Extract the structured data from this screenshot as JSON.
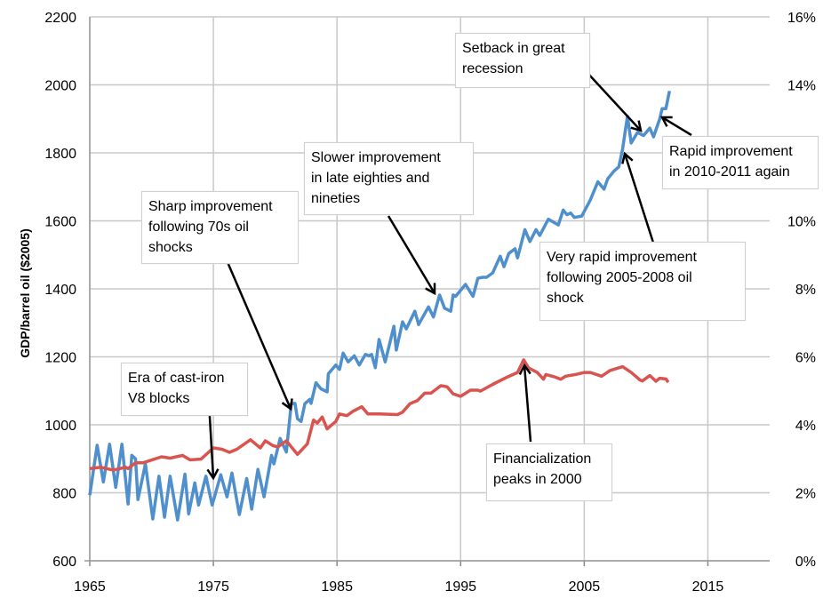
{
  "chart_data": {
    "type": "line",
    "title": "",
    "xlabel": "",
    "ylabel": "GDP/barrel oil ($2005)",
    "y2label": "",
    "xlim": [
      1965,
      2020
    ],
    "ylim": [
      600,
      2200
    ],
    "y2lim": [
      0,
      16
    ],
    "grid": true,
    "legend": "none",
    "x_ticks": [
      "1965",
      "1975",
      "1985",
      "1995",
      "2005",
      "2015"
    ],
    "y_ticks": [
      "600",
      "800",
      "1000",
      "1200",
      "1400",
      "1600",
      "1800",
      "2000",
      "2200"
    ],
    "y2_ticks": [
      "0%",
      "2%",
      "4%",
      "6%",
      "8%",
      "10%",
      "12%",
      "14%",
      "16%"
    ],
    "series": [
      {
        "axis": "left",
        "color": "#4f8fcc",
        "x": [
          1965.0,
          1965.6,
          1966.1,
          1966.6,
          1967.1,
          1967.6,
          1968.1,
          1968.4,
          1968.7,
          1968.9,
          1969.5,
          1970.1,
          1970.6,
          1971.05,
          1971.5,
          1972.1,
          1972.7,
          1973.0,
          1973.5,
          1973.8,
          1974.4,
          1974.9,
          1975.6,
          1976.1,
          1976.5,
          1977.1,
          1977.7,
          1978.1,
          1978.6,
          1979.1,
          1979.7,
          1979.9,
          1980.4,
          1980.9,
          1981.3,
          1981.6,
          1981.8,
          1982.1,
          1982.4,
          1982.8,
          1982.9,
          1983.3,
          1983.7,
          1984.2,
          1984.3,
          1984.9,
          1985.2,
          1985.5,
          1985.9,
          1986.4,
          1986.8,
          1987.3,
          1987.6,
          1987.8,
          1988.1,
          1988.4,
          1988.9,
          1989.6,
          1989.8,
          1990.3,
          1990.6,
          1991.3,
          1991.6,
          1992.4,
          1992.8,
          1993.3,
          1993.7,
          1994.2,
          1994.4,
          1994.6,
          1995.4,
          1996.0,
          1996.4,
          1996.8,
          1997.1,
          1997.6,
          1998.2,
          1998.5,
          1998.9,
          1999.4,
          1999.6,
          2000.2,
          2000.6,
          2001.1,
          2001.4,
          2002.1,
          2002.9,
          2003.3,
          2003.6,
          2003.9,
          2004.2,
          2004.8,
          2005.5,
          2006.1,
          2006.6,
          2006.9,
          2007.4,
          2007.8,
          2008.1,
          2008.5,
          2008.8,
          2009.3,
          2009.8,
          2010.3,
          2010.6,
          2011.1,
          2011.3,
          2011.6,
          2011.9
        ],
        "values": [
          793,
          940,
          832,
          943,
          816,
          943,
          767,
          910,
          900,
          780,
          885,
          723,
          849,
          728,
          849,
          720,
          855,
          738,
          829,
          764,
          849,
          764,
          853,
          788,
          858,
          736,
          842,
          752,
          869,
          788,
          910,
          885,
          960,
          920,
          1062,
          1063,
          1018,
          1010,
          1062,
          1075,
          1063,
          1124,
          1106,
          1097,
          1150,
          1176,
          1163,
          1211,
          1185,
          1203,
          1176,
          1207,
          1203,
          1207,
          1168,
          1251,
          1185,
          1290,
          1220,
          1303,
          1282,
          1334,
          1295,
          1347,
          1317,
          1382,
          1343,
          1334,
          1382,
          1378,
          1413,
          1378,
          1431,
          1434,
          1434,
          1447,
          1496,
          1465,
          1504,
          1518,
          1491,
          1574,
          1539,
          1574,
          1557,
          1605,
          1588,
          1632,
          1618,
          1623,
          1610,
          1614,
          1662,
          1715,
          1693,
          1724,
          1746,
          1759,
          1811,
          1908,
          1829,
          1860,
          1851,
          1873,
          1847,
          1899,
          1930,
          1930,
          1982
        ]
      },
      {
        "axis": "right",
        "color": "#d9534f",
        "x": [
          1965.0,
          1965.9,
          1966.9,
          1967.9,
          1968.1,
          1968.7,
          1969.3,
          1970.8,
          1971.5,
          1972.5,
          1973.1,
          1974.0,
          1975.0,
          1975.7,
          1976.3,
          1976.9,
          1978.0,
          1978.8,
          1979.2,
          1979.8,
          1980.2,
          1980.9,
          1981.8,
          1982.6,
          1983.1,
          1983.4,
          1983.8,
          1984.2,
          1984.9,
          1985.2,
          1985.8,
          1986.3,
          1987.0,
          1987.5,
          1988.4,
          1989.9,
          1990.3,
          1990.9,
          1991.5,
          1992.1,
          1992.6,
          1993.4,
          1993.9,
          1994.4,
          1995.0,
          1995.8,
          1996.4,
          1996.6,
          1997.6,
          1998.8,
          1999.6,
          2000.1,
          2000.5,
          2001.2,
          2001.7,
          2001.9,
          2002.6,
          2003.1,
          2003.5,
          2004.3,
          2005.0,
          2005.5,
          2006.4,
          2007.1,
          2008.1,
          2008.8,
          2009.5,
          2009.7,
          2010.3,
          2010.8,
          2011.1,
          2011.6,
          2011.8
        ],
        "values": [
          2.71,
          2.75,
          2.67,
          2.75,
          2.71,
          2.88,
          2.88,
          3.06,
          3.02,
          3.1,
          2.97,
          2.99,
          3.32,
          3.28,
          3.19,
          3.28,
          3.56,
          3.32,
          3.53,
          3.39,
          3.35,
          3.53,
          3.13,
          3.44,
          4.14,
          4.05,
          4.23,
          3.88,
          4.1,
          4.32,
          4.27,
          4.4,
          4.53,
          4.32,
          4.32,
          4.3,
          4.37,
          4.62,
          4.71,
          4.93,
          4.93,
          5.15,
          5.12,
          4.91,
          4.84,
          5.02,
          5.02,
          4.99,
          5.19,
          5.41,
          5.54,
          5.91,
          5.67,
          5.54,
          5.34,
          5.48,
          5.41,
          5.34,
          5.43,
          5.48,
          5.54,
          5.54,
          5.43,
          5.6,
          5.71,
          5.54,
          5.32,
          5.29,
          5.45,
          5.28,
          5.37,
          5.35,
          5.25
        ]
      }
    ],
    "annotations": [
      {
        "lines": [
          "Era of cast-iron",
          "V8 blocks"
        ]
      },
      {
        "lines": [
          "Sharp improvement",
          "following 70s oil",
          "shocks"
        ]
      },
      {
        "lines": [
          "Slower improvement",
          "in late eighties and",
          "nineties"
        ]
      },
      {
        "lines": [
          "Setback in great",
          "recession"
        ]
      },
      {
        "lines": [
          "Rapid improvement",
          "in 2010-2011 again"
        ]
      },
      {
        "lines": [
          "Very rapid improvement",
          "following 2005-2008 oil",
          "shock"
        ]
      },
      {
        "lines": [
          "Financialization",
          "peaks in 2000"
        ]
      }
    ]
  }
}
